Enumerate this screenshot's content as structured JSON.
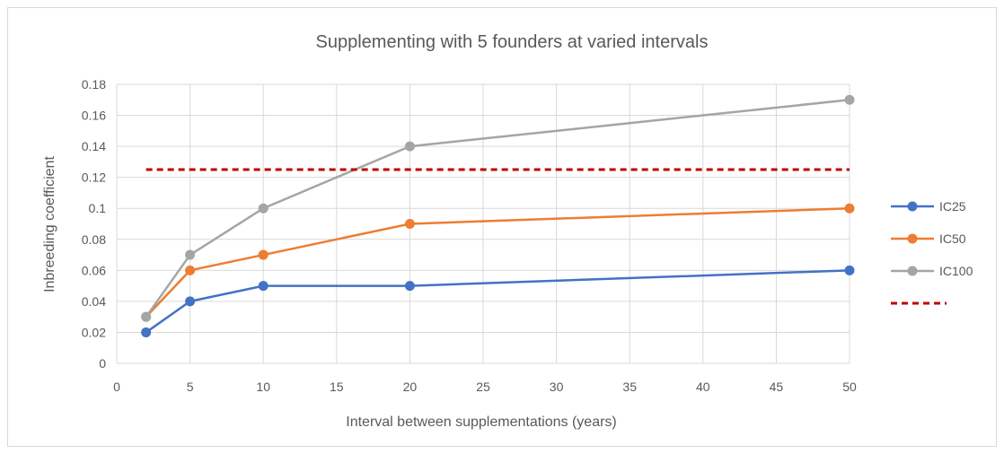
{
  "chart_data": {
    "type": "line",
    "title": "Supplementing with 5 founders at varied intervals",
    "xlabel": "Interval between supplementations (years)",
    "ylabel": "Inbreeding coefficient",
    "xlim": [
      0,
      50
    ],
    "ylim": [
      0,
      0.18
    ],
    "x_ticks": [
      "0",
      "5",
      "10",
      "15",
      "20",
      "25",
      "30",
      "35",
      "40",
      "45",
      "50"
    ],
    "y_ticks": [
      "0",
      "0.02",
      "0.04",
      "0.06",
      "0.08",
      "0.1",
      "0.12",
      "0.14",
      "0.16",
      "0.18"
    ],
    "grid": "vertical and horizontal",
    "legend_position": "right",
    "x": [
      2,
      5,
      10,
      20,
      50
    ],
    "series": [
      {
        "name": "IC25",
        "values": [
          0.02,
          0.04,
          0.05,
          0.05,
          0.06
        ],
        "color": "#4472c4",
        "style": "solid-marker"
      },
      {
        "name": "IC50",
        "values": [
          0.03,
          0.06,
          0.07,
          0.09,
          0.1
        ],
        "color": "#ed7d31",
        "style": "solid-marker"
      },
      {
        "name": "IC100",
        "values": [
          0.03,
          0.07,
          0.1,
          0.14,
          0.17
        ],
        "color": "#a5a5a5",
        "style": "solid-marker"
      },
      {
        "name": "",
        "x": [
          2,
          50
        ],
        "values": [
          0.125,
          0.125
        ],
        "color": "#c00000",
        "style": "dashed"
      }
    ]
  }
}
